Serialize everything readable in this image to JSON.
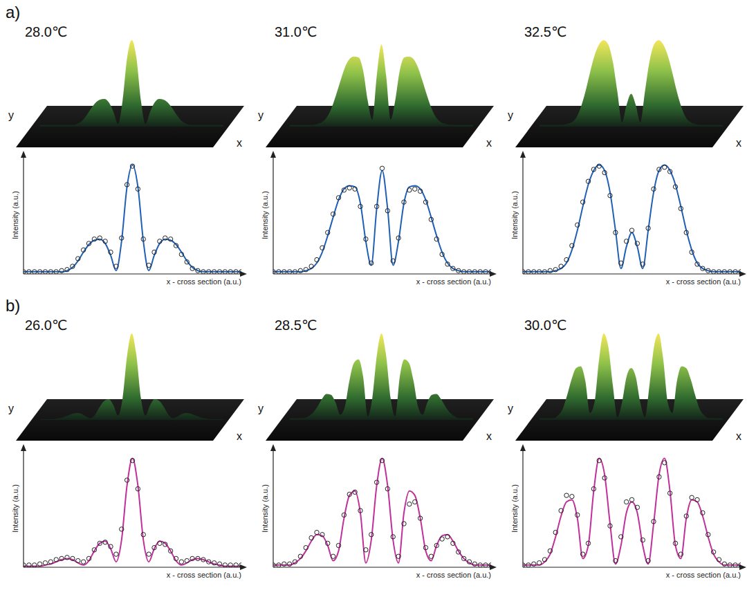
{
  "chart_data": [
    {
      "type": "line",
      "panel": "a)",
      "title": "28.0℃",
      "surface_xlabel": "x",
      "surface_ylabel": "y",
      "xlabel": "x - cross section (a.u.)",
      "ylabel": "Intensity (a.u.)",
      "xlim": [
        0,
        100
      ],
      "ylim": [
        0,
        1.08
      ],
      "tick_labels": false,
      "x": [
        0,
        2.5,
        5,
        7.5,
        10,
        12.5,
        15,
        17.5,
        20,
        22.5,
        25,
        27.5,
        30,
        32.5,
        35,
        37.5,
        40,
        42.5,
        45,
        47.5,
        50,
        52.5,
        55,
        57.5,
        60,
        62.5,
        65,
        67.5,
        70,
        72.5,
        75,
        77.5,
        80,
        82.5,
        85,
        87.5,
        90,
        92.5,
        95,
        97.5,
        100
      ],
      "series": [
        {
          "color": "#222222",
          "marker": "open_circle",
          "line_style": "none",
          "values": [
            0.02,
            0.02,
            0.02,
            0.02,
            0.02,
            0.02,
            0.02,
            0.03,
            0.04,
            0.07,
            0.14,
            0.22,
            0.28,
            0.32,
            0.33,
            0.3,
            0.2,
            0.07,
            0.33,
            0.82,
            0.99,
            0.78,
            0.32,
            0.08,
            0.2,
            0.3,
            0.33,
            0.32,
            0.26,
            0.18,
            0.11,
            0.05,
            0.03,
            0.02,
            0.02,
            0.02,
            0.02,
            0.02,
            0.02,
            0.02,
            0.02
          ]
        },
        {
          "color": "#1f5fb4",
          "marker": "none",
          "line_style": "solid",
          "values": [
            0.02,
            0.02,
            0.02,
            0.02,
            0.02,
            0.02,
            0.02,
            0.02,
            0.03,
            0.06,
            0.12,
            0.2,
            0.27,
            0.31,
            0.32,
            0.28,
            0.17,
            0.03,
            0.3,
            0.8,
            1.0,
            0.8,
            0.3,
            0.03,
            0.17,
            0.28,
            0.32,
            0.31,
            0.27,
            0.2,
            0.12,
            0.06,
            0.03,
            0.02,
            0.02,
            0.02,
            0.02,
            0.02,
            0.02,
            0.02,
            0.02
          ]
        }
      ]
    },
    {
      "type": "line",
      "panel": "a)",
      "title": "31.0℃",
      "surface_xlabel": "x",
      "surface_ylabel": "y",
      "xlabel": "x - cross section (a.u.)",
      "ylabel": "Intensity (a.u.)",
      "xlim": [
        0,
        100
      ],
      "ylim": [
        0,
        1.08
      ],
      "tick_labels": false,
      "x": [
        0,
        2.5,
        5,
        7.5,
        10,
        12.5,
        15,
        17.5,
        20,
        22.5,
        25,
        27.5,
        30,
        32.5,
        35,
        37.5,
        40,
        42.5,
        45,
        47.5,
        50,
        52.5,
        55,
        57.5,
        60,
        62.5,
        65,
        67.5,
        70,
        72.5,
        75,
        77.5,
        80,
        82.5,
        85,
        87.5,
        90,
        92.5,
        95,
        97.5,
        100
      ],
      "series": [
        {
          "color": "#222222",
          "marker": "open_circle",
          "line_style": "none",
          "values": [
            0.02,
            0.02,
            0.02,
            0.02,
            0.02,
            0.03,
            0.04,
            0.07,
            0.13,
            0.24,
            0.38,
            0.55,
            0.7,
            0.77,
            0.79,
            0.78,
            0.62,
            0.32,
            0.1,
            0.62,
            0.97,
            0.58,
            0.12,
            0.33,
            0.66,
            0.77,
            0.78,
            0.76,
            0.66,
            0.5,
            0.32,
            0.18,
            0.09,
            0.05,
            0.03,
            0.02,
            0.02,
            0.02,
            0.02,
            0.02,
            0.02
          ]
        },
        {
          "color": "#1f5fb4",
          "marker": "none",
          "line_style": "solid",
          "values": [
            0.02,
            0.02,
            0.02,
            0.02,
            0.02,
            0.02,
            0.03,
            0.05,
            0.1,
            0.2,
            0.35,
            0.52,
            0.68,
            0.78,
            0.81,
            0.8,
            0.65,
            0.3,
            0.08,
            0.6,
            0.95,
            0.6,
            0.08,
            0.3,
            0.65,
            0.8,
            0.81,
            0.78,
            0.68,
            0.52,
            0.35,
            0.2,
            0.1,
            0.05,
            0.03,
            0.02,
            0.02,
            0.02,
            0.02,
            0.02,
            0.02
          ]
        }
      ]
    },
    {
      "type": "line",
      "panel": "a)",
      "title": "32.5℃",
      "surface_xlabel": "x",
      "surface_ylabel": "y",
      "xlabel": "x - cross section (a.u.)",
      "ylabel": "Intensity (a.u.)",
      "xlim": [
        0,
        100
      ],
      "ylim": [
        0,
        1.08
      ],
      "tick_labels": false,
      "x": [
        0,
        2.5,
        5,
        7.5,
        10,
        12.5,
        15,
        17.5,
        20,
        22.5,
        25,
        27.5,
        30,
        32.5,
        35,
        37.5,
        40,
        42.5,
        45,
        47.5,
        50,
        52.5,
        55,
        57.5,
        60,
        62.5,
        65,
        67.5,
        70,
        72.5,
        75,
        77.5,
        80,
        82.5,
        85,
        87.5,
        90,
        92.5,
        95,
        97.5,
        100
      ],
      "series": [
        {
          "color": "#222222",
          "marker": "open_circle",
          "line_style": "none",
          "values": [
            0.02,
            0.02,
            0.02,
            0.02,
            0.02,
            0.03,
            0.04,
            0.07,
            0.13,
            0.26,
            0.45,
            0.66,
            0.85,
            0.96,
            0.99,
            0.93,
            0.72,
            0.38,
            0.1,
            0.3,
            0.4,
            0.28,
            0.09,
            0.42,
            0.78,
            0.96,
            0.98,
            0.94,
            0.8,
            0.6,
            0.38,
            0.2,
            0.09,
            0.05,
            0.03,
            0.02,
            0.02,
            0.02,
            0.02,
            0.02,
            0.02
          ]
        },
        {
          "color": "#1f5fb4",
          "marker": "none",
          "line_style": "solid",
          "values": [
            0.02,
            0.02,
            0.02,
            0.02,
            0.02,
            0.02,
            0.03,
            0.05,
            0.1,
            0.22,
            0.4,
            0.62,
            0.82,
            0.95,
            1.0,
            0.95,
            0.75,
            0.4,
            0.05,
            0.25,
            0.38,
            0.25,
            0.05,
            0.4,
            0.75,
            0.95,
            1.0,
            0.95,
            0.82,
            0.62,
            0.4,
            0.22,
            0.1,
            0.05,
            0.03,
            0.02,
            0.02,
            0.02,
            0.02,
            0.02,
            0.02
          ]
        }
      ]
    },
    {
      "type": "line",
      "panel": "b)",
      "title": "26.0℃",
      "surface_xlabel": "x",
      "surface_ylabel": "y",
      "xlabel": "x - cross section (a.u.)",
      "ylabel": "Intensity (a.u.)",
      "xlim": [
        0,
        100
      ],
      "ylim": [
        0,
        1.08
      ],
      "tick_labels": false,
      "x": [
        0,
        2.5,
        5,
        7.5,
        10,
        12.5,
        15,
        17.5,
        20,
        22.5,
        25,
        27.5,
        30,
        32.5,
        35,
        37.5,
        40,
        42.5,
        45,
        47.5,
        50,
        52.5,
        55,
        57.5,
        60,
        62.5,
        65,
        67.5,
        70,
        72.5,
        75,
        77.5,
        80,
        82.5,
        85,
        87.5,
        90,
        92.5,
        95,
        97.5,
        100
      ],
      "series": [
        {
          "color": "#222222",
          "marker": "open_circle",
          "line_style": "none",
          "values": [
            0.02,
            0.02,
            0.02,
            0.03,
            0.04,
            0.05,
            0.07,
            0.08,
            0.09,
            0.08,
            0.06,
            0.05,
            0.08,
            0.16,
            0.22,
            0.23,
            0.19,
            0.12,
            0.35,
            0.8,
            0.98,
            0.72,
            0.3,
            0.12,
            0.18,
            0.22,
            0.21,
            0.15,
            0.08,
            0.05,
            0.06,
            0.08,
            0.08,
            0.07,
            0.05,
            0.04,
            0.03,
            0.02,
            0.02,
            0.02,
            0.02
          ]
        },
        {
          "color": "#c0309a",
          "marker": "none",
          "line_style": "solid",
          "values": [
            0.01,
            0.01,
            0.01,
            0.01,
            0.02,
            0.03,
            0.05,
            0.07,
            0.08,
            0.07,
            0.04,
            0.02,
            0.06,
            0.15,
            0.22,
            0.24,
            0.17,
            0.05,
            0.25,
            0.75,
            1.0,
            0.75,
            0.25,
            0.05,
            0.17,
            0.24,
            0.22,
            0.15,
            0.06,
            0.02,
            0.04,
            0.07,
            0.08,
            0.07,
            0.05,
            0.03,
            0.02,
            0.01,
            0.01,
            0.01,
            0.01
          ]
        }
      ]
    },
    {
      "type": "line",
      "panel": "b)",
      "title": "28.5℃",
      "surface_xlabel": "x",
      "surface_ylabel": "y",
      "xlabel": "x - cross section (a.u.)",
      "ylabel": "Intensity (a.u.)",
      "xlim": [
        0,
        100
      ],
      "ylim": [
        0,
        1.08
      ],
      "tick_labels": false,
      "x": [
        0,
        2.5,
        5,
        7.5,
        10,
        12.5,
        15,
        17.5,
        20,
        22.5,
        25,
        27.5,
        30,
        32.5,
        35,
        37.5,
        40,
        42.5,
        45,
        47.5,
        50,
        52.5,
        55,
        57.5,
        60,
        62.5,
        65,
        67.5,
        70,
        72.5,
        75,
        77.5,
        80,
        82.5,
        85,
        87.5,
        90,
        92.5,
        95,
        97.5,
        100
      ],
      "series": [
        {
          "color": "#222222",
          "marker": "open_circle",
          "line_style": "none",
          "values": [
            0.02,
            0.02,
            0.03,
            0.03,
            0.05,
            0.1,
            0.18,
            0.27,
            0.32,
            0.3,
            0.22,
            0.1,
            0.2,
            0.48,
            0.67,
            0.69,
            0.52,
            0.16,
            0.3,
            0.78,
            0.98,
            0.72,
            0.28,
            0.1,
            0.4,
            0.58,
            0.6,
            0.45,
            0.18,
            0.1,
            0.2,
            0.26,
            0.28,
            0.22,
            0.14,
            0.08,
            0.05,
            0.03,
            0.02,
            0.02,
            0.02
          ]
        },
        {
          "color": "#c0309a",
          "marker": "none",
          "line_style": "solid",
          "values": [
            0.02,
            0.02,
            0.02,
            0.02,
            0.04,
            0.08,
            0.15,
            0.24,
            0.3,
            0.29,
            0.2,
            0.06,
            0.15,
            0.45,
            0.66,
            0.7,
            0.5,
            0.04,
            0.25,
            0.75,
            1.0,
            0.75,
            0.25,
            0.04,
            0.5,
            0.7,
            0.66,
            0.45,
            0.15,
            0.06,
            0.2,
            0.29,
            0.3,
            0.24,
            0.15,
            0.08,
            0.04,
            0.02,
            0.02,
            0.02,
            0.02
          ]
        }
      ]
    },
    {
      "type": "line",
      "panel": "b)",
      "title": "30.0℃",
      "surface_xlabel": "x",
      "surface_ylabel": "y",
      "xlabel": "x - cross section (a.u.)",
      "ylabel": "Intensity (a.u.)",
      "xlim": [
        0,
        100
      ],
      "ylim": [
        0,
        1.08
      ],
      "tick_labels": false,
      "x": [
        0,
        2.5,
        5,
        7.5,
        10,
        12.5,
        15,
        17.5,
        20,
        22.5,
        25,
        27.5,
        30,
        32.5,
        35,
        37.5,
        40,
        42.5,
        45,
        47.5,
        50,
        52.5,
        55,
        57.5,
        60,
        62.5,
        65,
        67.5,
        70,
        72.5,
        75,
        77.5,
        80,
        82.5,
        85,
        87.5,
        90,
        92.5,
        95,
        97.5,
        100
      ],
      "series": [
        {
          "color": "#222222",
          "marker": "open_circle",
          "line_style": "none",
          "values": [
            0.02,
            0.02,
            0.03,
            0.04,
            0.07,
            0.15,
            0.32,
            0.52,
            0.66,
            0.65,
            0.48,
            0.12,
            0.22,
            0.72,
            0.98,
            0.82,
            0.38,
            0.06,
            0.28,
            0.6,
            0.62,
            0.55,
            0.25,
            0.06,
            0.42,
            0.83,
            0.96,
            0.68,
            0.22,
            0.12,
            0.47,
            0.64,
            0.62,
            0.5,
            0.3,
            0.14,
            0.07,
            0.03,
            0.02,
            0.02,
            0.02
          ]
        },
        {
          "color": "#c0309a",
          "marker": "none",
          "line_style": "solid",
          "values": [
            0.02,
            0.02,
            0.02,
            0.02,
            0.05,
            0.12,
            0.28,
            0.47,
            0.6,
            0.62,
            0.45,
            0.08,
            0.2,
            0.7,
            1.0,
            0.85,
            0.4,
            0.03,
            0.2,
            0.5,
            0.6,
            0.5,
            0.2,
            0.03,
            0.4,
            0.85,
            1.0,
            0.7,
            0.2,
            0.08,
            0.45,
            0.62,
            0.6,
            0.47,
            0.28,
            0.12,
            0.05,
            0.02,
            0.02,
            0.02,
            0.02
          ]
        }
      ]
    }
  ]
}
